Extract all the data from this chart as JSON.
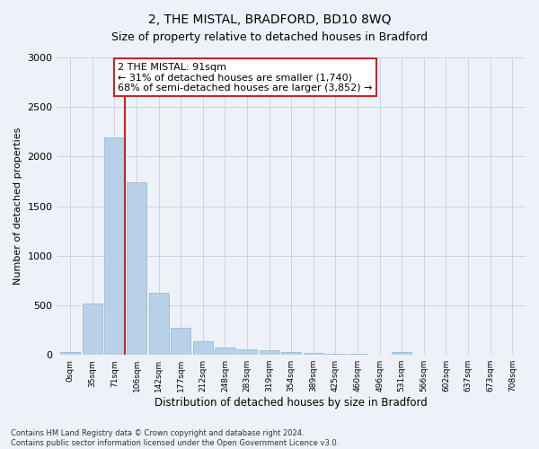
{
  "title": "2, THE MISTAL, BRADFORD, BD10 8WQ",
  "subtitle": "Size of property relative to detached houses in Bradford",
  "xlabel": "Distribution of detached houses by size in Bradford",
  "ylabel": "Number of detached properties",
  "bar_color": "#b8d0e8",
  "bar_edge_color": "#8ab4d4",
  "categories": [
    "0sqm",
    "35sqm",
    "71sqm",
    "106sqm",
    "142sqm",
    "177sqm",
    "212sqm",
    "248sqm",
    "283sqm",
    "319sqm",
    "354sqm",
    "389sqm",
    "425sqm",
    "460sqm",
    "496sqm",
    "531sqm",
    "566sqm",
    "602sqm",
    "637sqm",
    "673sqm",
    "708sqm"
  ],
  "values": [
    30,
    520,
    2190,
    1740,
    630,
    270,
    140,
    75,
    55,
    45,
    30,
    20,
    15,
    10,
    5,
    25,
    5,
    3,
    3,
    3,
    3
  ],
  "marker_label": "2 THE MISTAL: 91sqm",
  "annotation_line1": "← 31% of detached houses are smaller (1,740)",
  "annotation_line2": "68% of semi-detached houses are larger (3,852) →",
  "marker_color": "#cc2222",
  "box_edge_color": "#cc2222",
  "marker_bar_index": 2,
  "ylim": [
    0,
    3000
  ],
  "yticks": [
    0,
    500,
    1000,
    1500,
    2000,
    2500,
    3000
  ],
  "footer1": "Contains HM Land Registry data © Crown copyright and database right 2024.",
  "footer2": "Contains public sector information licensed under the Open Government Licence v3.0.",
  "background_color": "#eef2f8",
  "plot_bg_color": "#eef2f8",
  "grid_color": "#c8d4e8"
}
